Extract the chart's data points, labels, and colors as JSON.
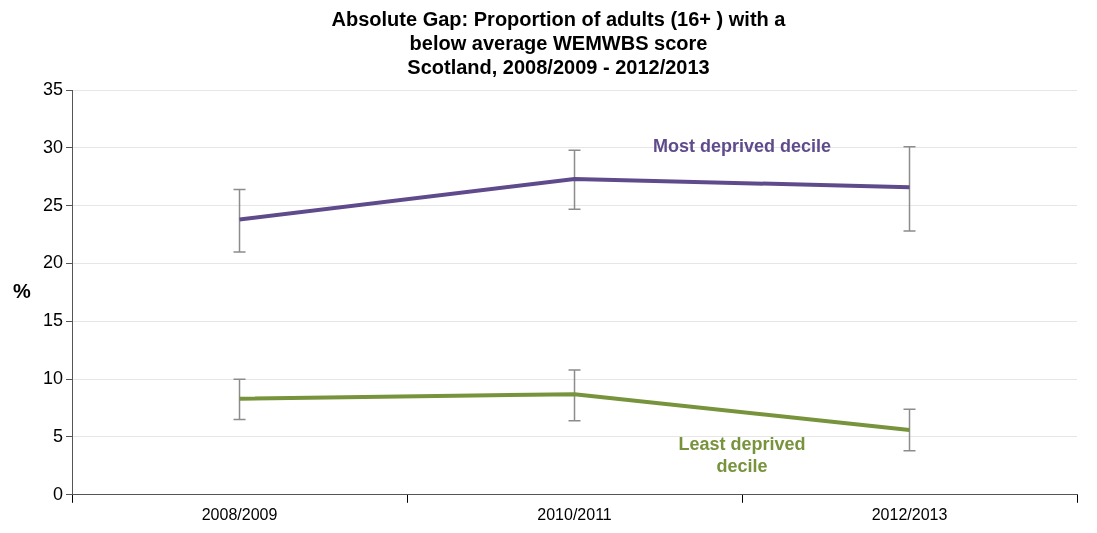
{
  "chart_data": {
    "type": "line",
    "title": "Absolute Gap: Proportion of adults (16+ ) with a\nbelow average WEMWBS score\nScotland, 2008/2009 - 2012/2013",
    "ylabel": "%",
    "categories": [
      "2008/2009",
      "2010/2011",
      "2012/2013"
    ],
    "series": [
      {
        "name": "Most deprived decile",
        "color": "#5f4b8b",
        "values": [
          23.8,
          27.3,
          26.6
        ],
        "errors": [
          [
            21.0,
            26.4
          ],
          [
            24.7,
            29.8
          ],
          [
            22.8,
            30.1
          ]
        ]
      },
      {
        "name": "Least deprived\ndecile",
        "color": "#77933c",
        "values": [
          8.3,
          8.7,
          5.6
        ],
        "errors": [
          [
            6.5,
            10.0
          ],
          [
            6.4,
            10.8
          ],
          [
            3.8,
            7.4
          ]
        ]
      }
    ],
    "ylim": [
      0,
      35
    ],
    "yticks": [
      0,
      5,
      10,
      15,
      20,
      25,
      30,
      35
    ],
    "grid": "y",
    "legend": false,
    "marker": "none",
    "line_style": "solid"
  }
}
